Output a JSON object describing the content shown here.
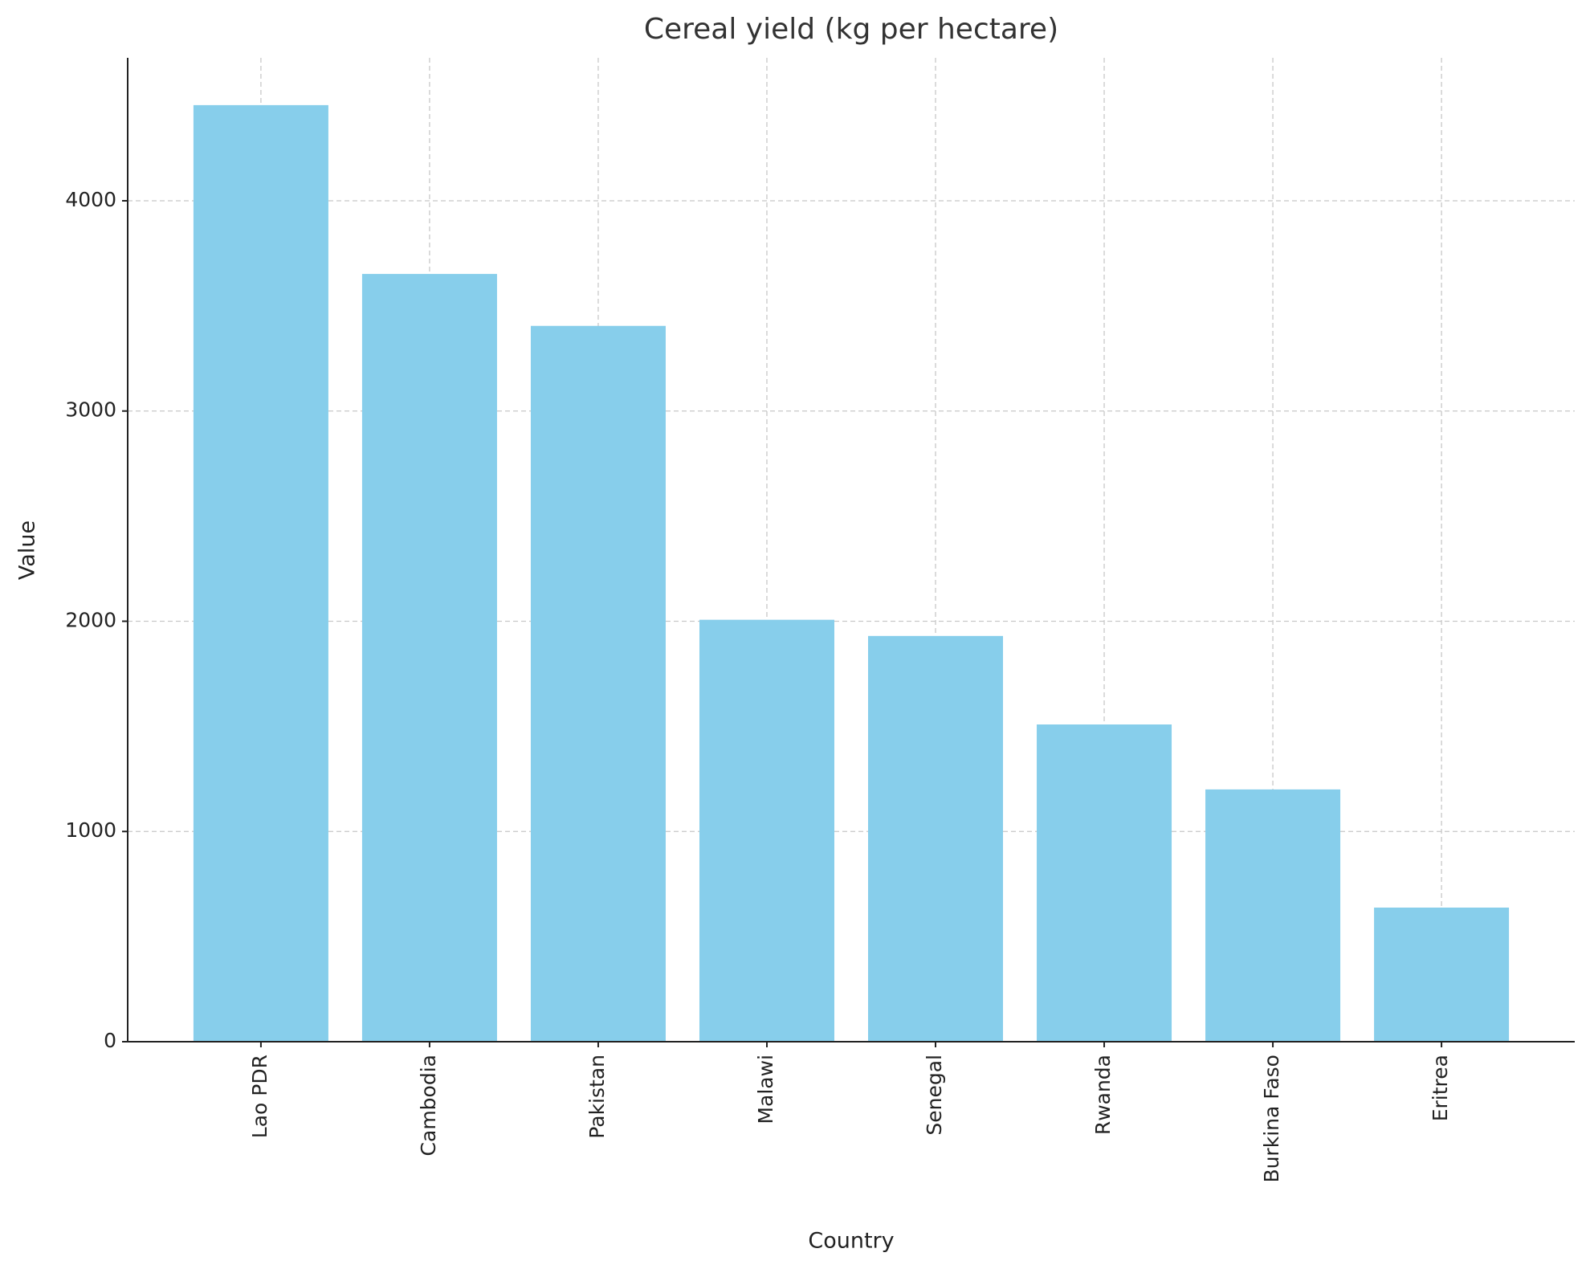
{
  "chart_data": {
    "type": "bar",
    "title": "Cereal yield (kg per hectare)",
    "x_label": "Country",
    "y_label": "Value",
    "categories": [
      "Lao PDR",
      "Cambodia",
      "Pakistan",
      "Malawi",
      "Senegal",
      "Rwanda",
      "Burkina Faso",
      "Eritrea"
    ],
    "values": [
      4455,
      3652,
      3405,
      2007,
      1930,
      1509,
      1200,
      638
    ],
    "color": "#87ceeb",
    "ylim": [
      0,
      4680
    ],
    "yticks": [
      0,
      1000,
      2000,
      3000,
      4000
    ],
    "grid": true
  }
}
